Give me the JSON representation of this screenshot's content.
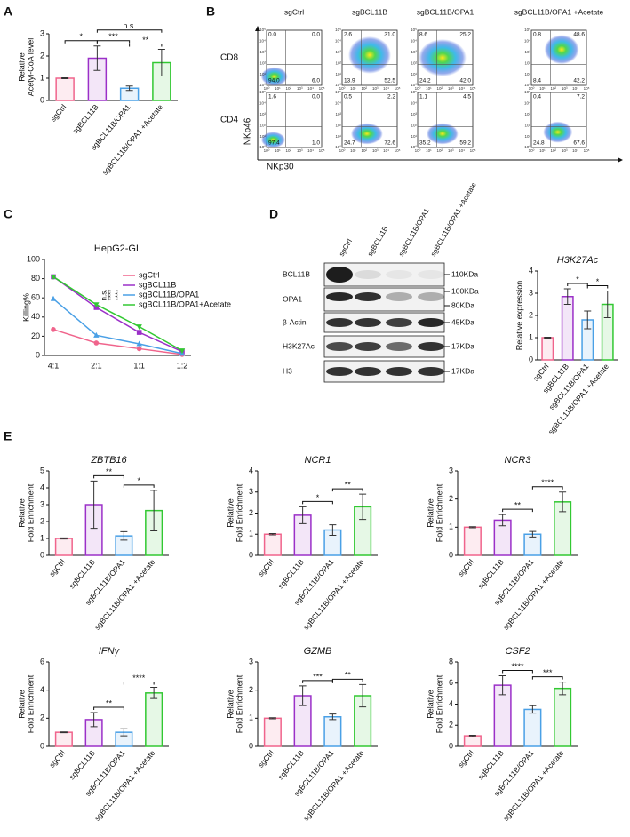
{
  "panel_labels": [
    "A",
    "B",
    "C",
    "D",
    "E"
  ],
  "chart_data": [
    {
      "type": "bar",
      "ylabel": [
        "Relative",
        "Acetyl-CoA level"
      ],
      "categories": [
        "sgCtrl",
        "sgBCL11B",
        "sgBCL11B/OPA1",
        "sgBCL11B/OPA1 +Acetate"
      ],
      "colors": [
        "#f0648c",
        "#9b30c8",
        "#4aa0e6",
        "#32c832"
      ],
      "values": [
        1.0,
        1.9,
        0.55,
        1.7
      ],
      "errors": [
        0.02,
        0.55,
        0.1,
        0.6
      ],
      "ylim": [
        0,
        3
      ],
      "yticks": [
        0,
        1,
        2,
        3
      ],
      "annotations": [
        {
          "text": "*",
          "from": 0,
          "to": 1
        },
        {
          "text": "***",
          "from": 1,
          "to": 2
        },
        {
          "text": "**",
          "from": 2,
          "to": 3
        },
        {
          "text": "n.s.",
          "from": 1,
          "to": 3
        }
      ]
    },
    {
      "type": "line",
      "title": "HepG2-GL",
      "ylabel": [
        "Killing%"
      ],
      "categories": [
        "4:1",
        "2:1",
        "1:1",
        "1:2"
      ],
      "ylim": [
        0,
        100
      ],
      "yticks": [
        0,
        20,
        40,
        60,
        80,
        100
      ],
      "series": [
        {
          "name": "sgCtrl",
          "color": "#f0648c",
          "values": [
            27,
            13,
            7,
            1
          ]
        },
        {
          "name": "sgBCL11B",
          "color": "#9b30c8",
          "values": [
            82,
            50,
            24,
            4
          ]
        },
        {
          "name": "sgBCL11B/OPA1",
          "color": "#4aa0e6",
          "values": [
            59,
            21,
            12,
            2
          ]
        },
        {
          "name": "sgBCL11B/OPA1+Acetate",
          "color": "#32c832",
          "values": [
            82,
            53,
            30,
            5
          ]
        }
      ],
      "annotations": [
        "n.s.",
        "****",
        "****"
      ]
    },
    {
      "type": "bar",
      "title": "H3K27Ac",
      "ylabel": [
        "Relative expression"
      ],
      "categories": [
        "sgCtrl",
        "sgBCL11B",
        "sgBCL11B/OPA1",
        "sgBCL11B/OPA1 +Acetate"
      ],
      "colors": [
        "#f0648c",
        "#9b30c8",
        "#4aa0e6",
        "#32c832"
      ],
      "values": [
        1.0,
        2.85,
        1.8,
        2.5
      ],
      "errors": [
        0.02,
        0.35,
        0.4,
        0.6
      ],
      "ylim": [
        0,
        4
      ],
      "yticks": [
        0,
        1,
        2,
        3,
        4
      ],
      "annotations": [
        {
          "text": "*",
          "from": 1,
          "to": 2
        },
        {
          "text": "*",
          "from": 2,
          "to": 3
        }
      ]
    },
    {
      "type": "bar",
      "title": "ZBTB16",
      "ylabel": [
        "Relative",
        "Fold Enrichment"
      ],
      "categories": [
        "sgCtrl",
        "sgBCL11B",
        "sgBCL11B/OPA1",
        "sgBCL11B/OPA1 +Acetate"
      ],
      "colors": [
        "#f0648c",
        "#9b30c8",
        "#4aa0e6",
        "#32c832"
      ],
      "values": [
        1.0,
        3.0,
        1.15,
        2.65
      ],
      "errors": [
        0.03,
        1.4,
        0.25,
        1.2
      ],
      "ylim": [
        0,
        5
      ],
      "yticks": [
        0,
        1,
        2,
        3,
        4,
        5
      ],
      "annotations": [
        {
          "text": "**",
          "from": 1,
          "to": 2
        },
        {
          "text": "*",
          "from": 2,
          "to": 3
        }
      ]
    },
    {
      "type": "bar",
      "title": "NCR1",
      "ylabel": [
        "Relative",
        "Fold Enrichment"
      ],
      "categories": [
        "sgCtrl",
        "sgBCL11B",
        "sgBCL11B/OPA1",
        "sgBCL11B/OPA1 +Acetate"
      ],
      "colors": [
        "#f0648c",
        "#9b30c8",
        "#4aa0e6",
        "#32c832"
      ],
      "values": [
        1.0,
        1.9,
        1.2,
        2.3
      ],
      "errors": [
        0.03,
        0.4,
        0.25,
        0.6
      ],
      "ylim": [
        0,
        4
      ],
      "yticks": [
        0,
        1,
        2,
        3,
        4
      ],
      "annotations": [
        {
          "text": "*",
          "from": 1,
          "to": 2
        },
        {
          "text": "**",
          "from": 2,
          "to": 3
        }
      ]
    },
    {
      "type": "bar",
      "title": "NCR3",
      "ylabel": [
        "Relative",
        "Fold Enrichment"
      ],
      "categories": [
        "sgCtrl",
        "sgBCL11B",
        "sgBCL11B/OPA1",
        "sgBCL11B/OPA1 +Acetate"
      ],
      "colors": [
        "#f0648c",
        "#9b30c8",
        "#4aa0e6",
        "#32c832"
      ],
      "values": [
        1.0,
        1.25,
        0.75,
        1.9
      ],
      "errors": [
        0.02,
        0.2,
        0.1,
        0.35
      ],
      "ylim": [
        0,
        3
      ],
      "yticks": [
        0,
        1,
        2,
        3
      ],
      "annotations": [
        {
          "text": "**",
          "from": 1,
          "to": 2
        },
        {
          "text": "****",
          "from": 2,
          "to": 3
        }
      ]
    },
    {
      "type": "bar",
      "title": "IFNγ",
      "ylabel": [
        "Relative",
        "Fold Enrichment"
      ],
      "categories": [
        "sgCtrl",
        "sgBCL11B",
        "sgBCL11B/OPA1",
        "sgBCL11B/OPA1 +Acetate"
      ],
      "colors": [
        "#f0648c",
        "#9b30c8",
        "#4aa0e6",
        "#32c832"
      ],
      "values": [
        1.0,
        1.9,
        1.0,
        3.8
      ],
      "errors": [
        0.03,
        0.5,
        0.25,
        0.4
      ],
      "ylim": [
        0,
        6
      ],
      "yticks": [
        0,
        2,
        4,
        6
      ],
      "annotations": [
        {
          "text": "**",
          "from": 1,
          "to": 2
        },
        {
          "text": "****",
          "from": 2,
          "to": 3
        }
      ]
    },
    {
      "type": "bar",
      "title": "GZMB",
      "ylabel": [
        "Relative",
        "Fold Enrichment"
      ],
      "categories": [
        "sgCtrl",
        "sgBCL11B",
        "sgBCL11B/OPA1",
        "sgBCL11B/OPA1 +Acetate"
      ],
      "colors": [
        "#f0648c",
        "#9b30c8",
        "#4aa0e6",
        "#32c832"
      ],
      "values": [
        1.0,
        1.8,
        1.05,
        1.8
      ],
      "errors": [
        0.02,
        0.35,
        0.1,
        0.4
      ],
      "ylim": [
        0,
        3
      ],
      "yticks": [
        0,
        1,
        2,
        3
      ],
      "annotations": [
        {
          "text": "***",
          "from": 1,
          "to": 2
        },
        {
          "text": "**",
          "from": 2,
          "to": 3
        }
      ]
    },
    {
      "type": "bar",
      "title": "CSF2",
      "ylabel": [
        "Relative",
        "Fold Enrichment"
      ],
      "categories": [
        "sgCtrl",
        "sgBCL11B",
        "sgBCL11B/OPA1",
        "sgBCL11B/OPA1 +Acetate"
      ],
      "colors": [
        "#f0648c",
        "#9b30c8",
        "#4aa0e6",
        "#32c832"
      ],
      "values": [
        1.0,
        5.8,
        3.5,
        5.5
      ],
      "errors": [
        0.05,
        0.9,
        0.35,
        0.6
      ],
      "ylim": [
        0,
        8
      ],
      "yticks": [
        0,
        2,
        4,
        6,
        8
      ],
      "annotations": [
        {
          "text": "****",
          "from": 1,
          "to": 2
        },
        {
          "text": "***",
          "from": 2,
          "to": 3
        }
      ]
    }
  ],
  "flow": {
    "columns": [
      "sgCtrl",
      "sgBCL11B",
      "sgBCL11B/OPA1",
      "sgBCL11B/OPA1 +Acetate"
    ],
    "xlabel": "NKp30",
    "ylabel": "NKp46",
    "tick_labels": [
      "10⁰",
      "10¹",
      "10²",
      "10³",
      "10⁴",
      "10⁵"
    ],
    "rows": [
      {
        "name": "CD8",
        "quadrants": [
          [
            "0.0",
            "0.0",
            "94.0",
            "6.0"
          ],
          [
            "2.6",
            "31.0",
            "13.9",
            "52.5"
          ],
          [
            "8.6",
            "25.2",
            "24.2",
            "42.0"
          ],
          [
            "0.8",
            "48.6",
            "8.4",
            "42.2"
          ]
        ]
      },
      {
        "name": "CD4",
        "quadrants": [
          [
            "1.6",
            "0.0",
            "97.4",
            "1.0"
          ],
          [
            "0.5",
            "2.2",
            "24.7",
            "72.6"
          ],
          [
            "1.1",
            "4.5",
            "35.2",
            "59.2"
          ],
          [
            "0.4",
            "7.2",
            "24.8",
            "67.6"
          ]
        ]
      }
    ]
  },
  "blot": {
    "lanes": [
      "sgCtrl",
      "sgBCL11B",
      "sgBCL11B/OPA1",
      "sgBCL11B/OPA1 +Acetate"
    ],
    "rows": [
      {
        "name": "BCL11B",
        "markers": [
          "110KDa"
        ]
      },
      {
        "name": "OPA1",
        "markers": [
          "100KDa",
          "80KDa"
        ]
      },
      {
        "name": "β-Actin",
        "markers": [
          "45KDa"
        ]
      },
      {
        "name": "H3K27Ac",
        "markers": [
          "17KDa"
        ]
      },
      {
        "name": "H3",
        "markers": [
          "17KDa"
        ]
      }
    ]
  }
}
